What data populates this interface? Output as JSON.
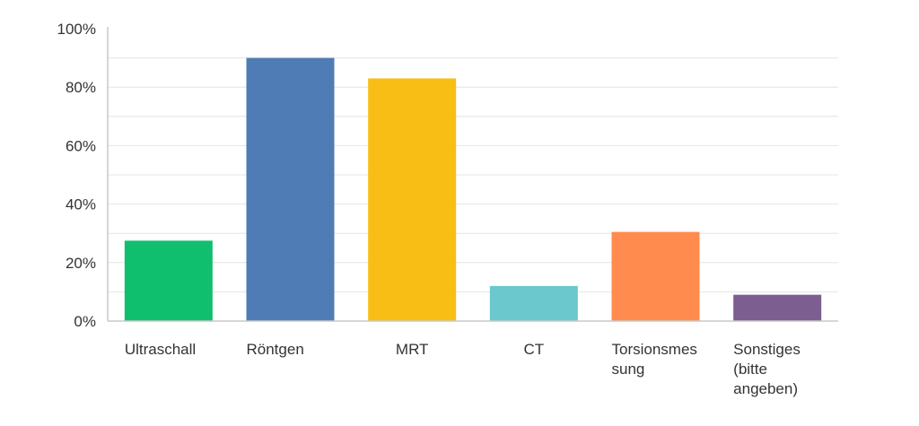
{
  "chart_data": {
    "type": "bar",
    "title": "",
    "xlabel": "",
    "ylabel": "",
    "ylim": [
      0,
      100
    ],
    "y_ticks": [
      0,
      20,
      40,
      60,
      80,
      100
    ],
    "y_tick_labels": [
      "0%",
      "20%",
      "40%",
      "60%",
      "80%",
      "100%"
    ],
    "grid": true,
    "legend": "none",
    "categories": [
      [
        "Ultraschall"
      ],
      [
        "Röntgen"
      ],
      [
        "MRT"
      ],
      [
        "CT"
      ],
      [
        "Torsionsmes",
        "sung"
      ],
      [
        "Sonstiges",
        "(bitte",
        "angeben)"
      ]
    ],
    "values": [
      27.5,
      90,
      83,
      12,
      30.5,
      9
    ],
    "colors": [
      "#10bf6e",
      "#507cb6",
      "#f9be15",
      "#6bc8cd",
      "#ff8b4f",
      "#7d5e90"
    ],
    "axis_color": "#c9c9c9",
    "grid_color": "#e4e4e4"
  }
}
